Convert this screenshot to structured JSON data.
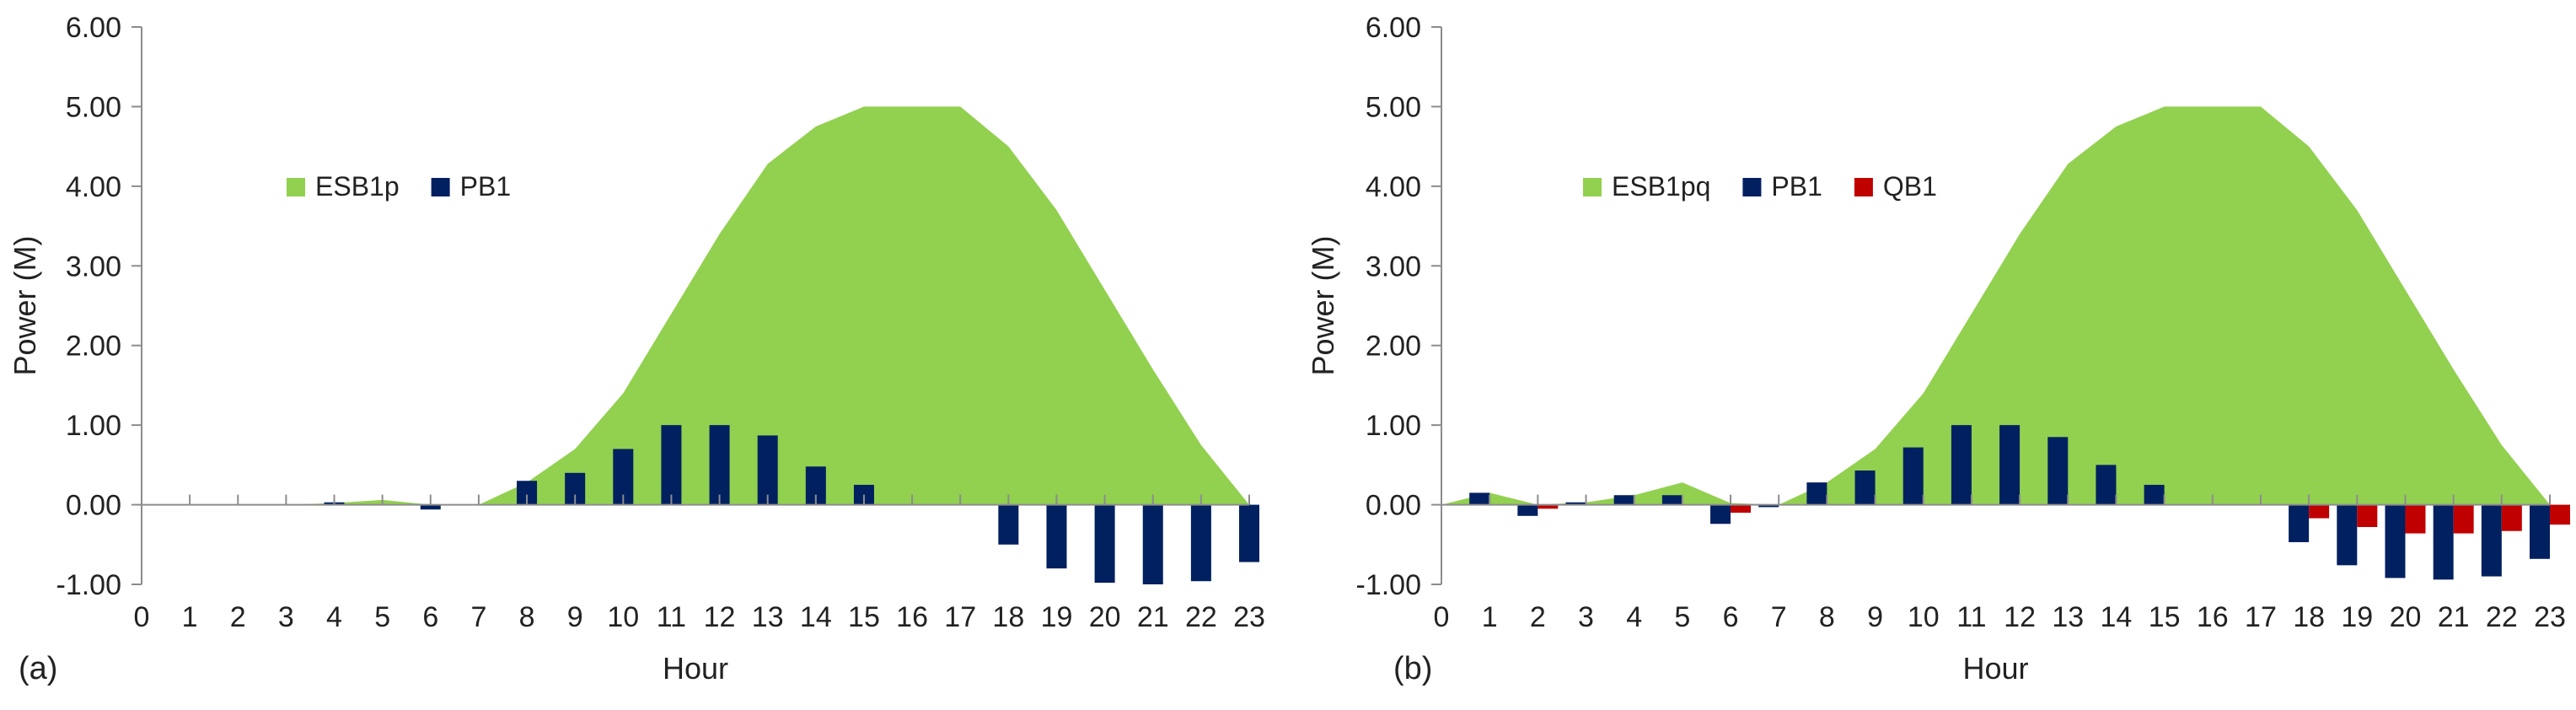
{
  "chart_data": [
    {
      "type": "area+bar",
      "panel_label": "(a)",
      "xlabel": "Hour",
      "ylabel": "Power (M)",
      "x": [
        0,
        1,
        2,
        3,
        4,
        5,
        6,
        7,
        8,
        9,
        10,
        11,
        12,
        13,
        14,
        15,
        16,
        17,
        18,
        19,
        20,
        21,
        22,
        23
      ],
      "x_tick_labels": [
        "0",
        "1",
        "2",
        "3",
        "4",
        "5",
        "6",
        "7",
        "8",
        "9",
        "10",
        "11",
        "12",
        "13",
        "14",
        "15",
        "16",
        "17",
        "18",
        "19",
        "20",
        "21",
        "22",
        "23"
      ],
      "ylim": [
        -1,
        6
      ],
      "y_ticks": [
        -1,
        0,
        1,
        2,
        3,
        4,
        5,
        6
      ],
      "y_tick_labels": [
        "-1.00",
        "0.00",
        "1.00",
        "2.00",
        "3.00",
        "4.00",
        "5.00",
        "6.00"
      ],
      "legend": [
        "ESB1p",
        "PB1"
      ],
      "area": {
        "name": "ESB1p",
        "color": "#92d050",
        "values": [
          0,
          0,
          0,
          0,
          0.02,
          0.06,
          0,
          0,
          0.28,
          0.7,
          1.4,
          2.4,
          3.4,
          4.28,
          4.75,
          5.0,
          5.0,
          5.0,
          4.5,
          3.7,
          2.7,
          1.7,
          0.75,
          0
        ]
      },
      "series": [
        {
          "name": "PB1",
          "color": "#002060",
          "values": [
            0,
            0,
            0,
            0,
            0.03,
            0,
            -0.06,
            0,
            0.3,
            0.4,
            0.7,
            1.0,
            1.0,
            0.87,
            0.48,
            0.25,
            0,
            0,
            -0.5,
            -0.8,
            -0.98,
            -1.0,
            -0.96,
            -0.72
          ]
        }
      ]
    },
    {
      "type": "area+bar",
      "panel_label": "(b)",
      "xlabel": "Hour",
      "ylabel": "Power (M)",
      "x": [
        0,
        1,
        2,
        3,
        4,
        5,
        6,
        7,
        8,
        9,
        10,
        11,
        12,
        13,
        14,
        15,
        16,
        17,
        18,
        19,
        20,
        21,
        22,
        23
      ],
      "x_tick_labels": [
        "0",
        "1",
        "2",
        "3",
        "4",
        "5",
        "6",
        "7",
        "8",
        "9",
        "10",
        "11",
        "12",
        "13",
        "14",
        "15",
        "16",
        "17",
        "18",
        "19",
        "20",
        "21",
        "22",
        "23"
      ],
      "ylim": [
        -1,
        6
      ],
      "y_ticks": [
        -1,
        0,
        1,
        2,
        3,
        4,
        5,
        6
      ],
      "y_tick_labels": [
        "-1.00",
        "0.00",
        "1.00",
        "2.00",
        "3.00",
        "4.00",
        "5.00",
        "6.00"
      ],
      "legend": [
        "ESB1pq",
        "PB1",
        "QB1"
      ],
      "area": {
        "name": "ESB1pq",
        "color": "#92d050",
        "values": [
          0,
          0.15,
          0,
          0.03,
          0.12,
          0.28,
          0.02,
          0,
          0.28,
          0.7,
          1.4,
          2.4,
          3.4,
          4.28,
          4.75,
          5.0,
          5.0,
          5.0,
          4.5,
          3.7,
          2.7,
          1.7,
          0.75,
          0
        ]
      },
      "series": [
        {
          "name": "PB1",
          "color": "#002060",
          "values": [
            0,
            0.15,
            -0.14,
            0.03,
            0.12,
            0.12,
            -0.24,
            -0.03,
            0.28,
            0.43,
            0.72,
            1.0,
            1.0,
            0.85,
            0.5,
            0.25,
            0,
            0,
            -0.47,
            -0.76,
            -0.92,
            -0.94,
            -0.9,
            -0.68
          ]
        },
        {
          "name": "QB1",
          "color": "#c00000",
          "values": [
            0,
            0,
            -0.05,
            0,
            0,
            0,
            -0.1,
            0,
            0,
            0,
            0,
            0,
            0,
            0,
            0,
            0,
            0,
            0,
            -0.17,
            -0.28,
            -0.36,
            -0.36,
            -0.33,
            -0.25
          ]
        }
      ]
    }
  ]
}
